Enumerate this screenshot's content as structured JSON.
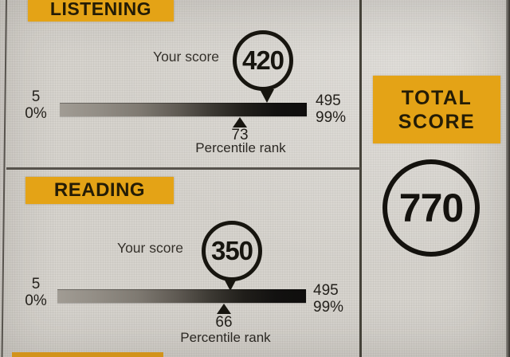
{
  "accent_color": "#e4a316",
  "listening": {
    "header": "LISTENING",
    "score_label": "Your score",
    "score": "420",
    "scale": {
      "min": "5",
      "min_pct": "0%",
      "max": "495",
      "max_pct": "99%"
    },
    "percentile": "73",
    "percentile_label": "Percentile rank"
  },
  "reading": {
    "header": "READING",
    "score_label": "Your score",
    "score": "350",
    "scale": {
      "min": "5",
      "min_pct": "0%",
      "max": "495",
      "max_pct": "99%"
    },
    "percentile": "66",
    "percentile_label": "Percentile rank"
  },
  "total": {
    "header_line1": "TOTAL",
    "header_line2": "SCORE",
    "score": "770"
  },
  "chart_data": [
    {
      "type": "linear-gauge",
      "title": "LISTENING",
      "score": 420,
      "score_range": [
        5,
        495
      ],
      "percentile_rank": 73,
      "percentile_range_labels": [
        "0%",
        "99%"
      ],
      "annotations": [
        "Your score",
        "Percentile rank"
      ]
    },
    {
      "type": "linear-gauge",
      "title": "READING",
      "score": 350,
      "score_range": [
        5,
        495
      ],
      "percentile_rank": 66,
      "percentile_range_labels": [
        "0%",
        "99%"
      ],
      "annotations": [
        "Your score",
        "Percentile rank"
      ]
    },
    {
      "type": "total",
      "title": "TOTAL SCORE",
      "score": 770
    }
  ]
}
